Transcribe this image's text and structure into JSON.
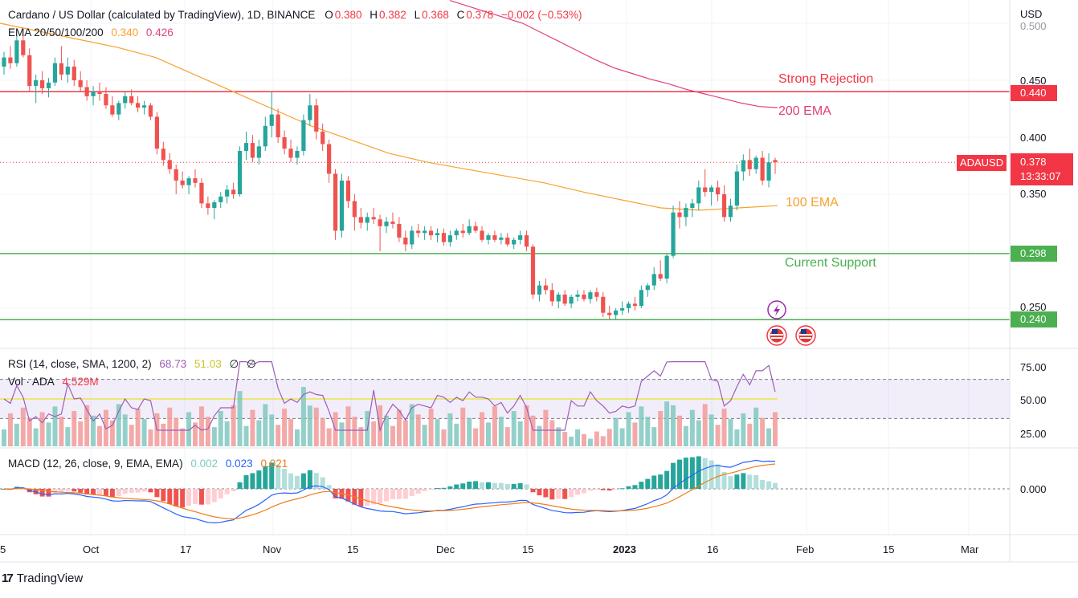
{
  "header": {
    "symbol_title": "Cardano / US Dollar (calculated by TradingView), 1D, BINANCE",
    "o_label": "O",
    "o_value": "0.380",
    "h_label": "H",
    "h_value": "0.382",
    "l_label": "L",
    "l_value": "0.368",
    "c_label": "C",
    "c_value": "0.378",
    "change": "−0.002 (−0.53%)",
    "ema_label": "EMA 20/50/100/200",
    "ema_v1": "0.340",
    "ema_v2": "0.426"
  },
  "rsi_header": {
    "label": "RSI (14, close, SMA, 1200, 2)",
    "v1": "68.73",
    "v2": "51.03",
    "v3": "∅",
    "v4": "∅"
  },
  "vol_header": {
    "label": "Vol · ADA",
    "value": "4.529M"
  },
  "macd_header": {
    "label": "MACD (12, 26, close, 9, EMA, EMA)",
    "v1": "0.002",
    "v2": "0.023",
    "v3": "0.021"
  },
  "annotations": {
    "strong_rejection": "Strong Rejection",
    "ema200": "200 EMA",
    "ema100": "100 EMA",
    "current_support": "Current Support"
  },
  "price_axis": {
    "unit": "USD",
    "ticks": [
      "0.500",
      "0.450",
      "0.400",
      "0.350",
      "0.250"
    ],
    "tag_440": "0.440",
    "tag_298": "0.298",
    "tag_240": "0.240",
    "last_price": "0.378",
    "countdown": "13:33:07",
    "symbol_tag": "ADAUSD"
  },
  "rsi_axis": {
    "ticks": [
      "75.00",
      "50.00",
      "25.00"
    ]
  },
  "macd_axis": {
    "ticks": [
      "0.000"
    ]
  },
  "time_axis": {
    "labels": [
      "5",
      "Oct",
      "17",
      "Nov",
      "15",
      "Dec",
      "15",
      "2023",
      "16",
      "Feb",
      "15",
      "Mar"
    ]
  },
  "branding": {
    "logo_text": "TradingView",
    "logo_mark": "17"
  },
  "chart_data": {
    "type": "candlestick",
    "symbol": "ADAUSD",
    "interval": "1D",
    "exchange": "BINANCE",
    "price_range": [
      0.235,
      0.51
    ],
    "horizontal_levels": [
      {
        "value": 0.44,
        "color": "#f23645",
        "label": "Strong Rejection"
      },
      {
        "value": 0.298,
        "color": "#4caf50",
        "label": "Current Support"
      },
      {
        "value": 0.24,
        "color": "#4caf50"
      }
    ],
    "candles": [
      [
        0.462,
        0.475,
        0.455,
        0.47
      ],
      [
        0.47,
        0.48,
        0.46,
        0.465
      ],
      [
        0.465,
        0.49,
        0.462,
        0.485
      ],
      [
        0.485,
        0.495,
        0.47,
        0.472
      ],
      [
        0.472,
        0.478,
        0.44,
        0.445
      ],
      [
        0.445,
        0.455,
        0.43,
        0.45
      ],
      [
        0.45,
        0.458,
        0.438,
        0.443
      ],
      [
        0.443,
        0.452,
        0.435,
        0.448
      ],
      [
        0.448,
        0.47,
        0.445,
        0.465
      ],
      [
        0.465,
        0.48,
        0.45,
        0.455
      ],
      [
        0.455,
        0.47,
        0.448,
        0.462
      ],
      [
        0.462,
        0.468,
        0.445,
        0.45
      ],
      [
        0.45,
        0.458,
        0.44,
        0.444
      ],
      [
        0.444,
        0.45,
        0.432,
        0.436
      ],
      [
        0.436,
        0.445,
        0.428,
        0.44
      ],
      [
        0.44,
        0.448,
        0.432,
        0.438
      ],
      [
        0.438,
        0.444,
        0.425,
        0.428
      ],
      [
        0.428,
        0.436,
        0.418,
        0.42
      ],
      [
        0.42,
        0.432,
        0.415,
        0.43
      ],
      [
        0.43,
        0.44,
        0.425,
        0.436
      ],
      [
        0.436,
        0.442,
        0.428,
        0.43
      ],
      [
        0.43,
        0.436,
        0.422,
        0.426
      ],
      [
        0.426,
        0.432,
        0.42,
        0.428
      ],
      [
        0.428,
        0.43,
        0.415,
        0.418
      ],
      [
        0.418,
        0.422,
        0.385,
        0.39
      ],
      [
        0.39,
        0.396,
        0.375,
        0.38
      ],
      [
        0.38,
        0.386,
        0.368,
        0.372
      ],
      [
        0.372,
        0.376,
        0.35,
        0.362
      ],
      [
        0.362,
        0.37,
        0.355,
        0.358
      ],
      [
        0.358,
        0.366,
        0.35,
        0.364
      ],
      [
        0.364,
        0.372,
        0.356,
        0.36
      ],
      [
        0.36,
        0.364,
        0.338,
        0.342
      ],
      [
        0.342,
        0.348,
        0.332,
        0.338
      ],
      [
        0.338,
        0.345,
        0.328,
        0.343
      ],
      [
        0.343,
        0.352,
        0.338,
        0.348
      ],
      [
        0.348,
        0.358,
        0.342,
        0.354
      ],
      [
        0.354,
        0.36,
        0.346,
        0.35
      ],
      [
        0.35,
        0.392,
        0.348,
        0.388
      ],
      [
        0.388,
        0.405,
        0.38,
        0.395
      ],
      [
        0.395,
        0.402,
        0.378,
        0.382
      ],
      [
        0.382,
        0.398,
        0.376,
        0.392
      ],
      [
        0.392,
        0.418,
        0.388,
        0.41
      ],
      [
        0.41,
        0.44,
        0.4,
        0.42
      ],
      [
        0.42,
        0.425,
        0.395,
        0.4
      ],
      [
        0.4,
        0.406,
        0.385,
        0.39
      ],
      [
        0.39,
        0.398,
        0.378,
        0.382
      ],
      [
        0.382,
        0.392,
        0.376,
        0.388
      ],
      [
        0.388,
        0.42,
        0.384,
        0.415
      ],
      [
        0.415,
        0.438,
        0.41,
        0.428
      ],
      [
        0.428,
        0.434,
        0.398,
        0.405
      ],
      [
        0.405,
        0.412,
        0.388,
        0.394
      ],
      [
        0.394,
        0.398,
        0.36,
        0.368
      ],
      [
        0.368,
        0.372,
        0.31,
        0.318
      ],
      [
        0.318,
        0.368,
        0.312,
        0.362
      ],
      [
        0.362,
        0.366,
        0.338,
        0.344
      ],
      [
        0.344,
        0.35,
        0.318,
        0.33
      ],
      [
        0.33,
        0.338,
        0.32,
        0.325
      ],
      [
        0.325,
        0.334,
        0.318,
        0.33
      ],
      [
        0.33,
        0.338,
        0.324,
        0.328
      ],
      [
        0.328,
        0.332,
        0.3,
        0.322
      ],
      [
        0.322,
        0.33,
        0.316,
        0.326
      ],
      [
        0.326,
        0.334,
        0.32,
        0.324
      ],
      [
        0.324,
        0.33,
        0.308,
        0.312
      ],
      [
        0.312,
        0.318,
        0.3,
        0.306
      ],
      [
        0.306,
        0.322,
        0.302,
        0.318
      ],
      [
        0.318,
        0.324,
        0.312,
        0.316
      ],
      [
        0.316,
        0.322,
        0.31,
        0.318
      ],
      [
        0.318,
        0.322,
        0.31,
        0.314
      ],
      [
        0.314,
        0.32,
        0.308,
        0.316
      ],
      [
        0.316,
        0.32,
        0.305,
        0.308
      ],
      [
        0.308,
        0.318,
        0.304,
        0.314
      ],
      [
        0.314,
        0.32,
        0.31,
        0.318
      ],
      [
        0.318,
        0.324,
        0.312,
        0.316
      ],
      [
        0.316,
        0.328,
        0.314,
        0.322
      ],
      [
        0.322,
        0.326,
        0.316,
        0.318
      ],
      [
        0.318,
        0.322,
        0.308,
        0.31
      ],
      [
        0.31,
        0.316,
        0.306,
        0.314
      ],
      [
        0.314,
        0.318,
        0.308,
        0.31
      ],
      [
        0.31,
        0.316,
        0.306,
        0.312
      ],
      [
        0.312,
        0.316,
        0.304,
        0.306
      ],
      [
        0.306,
        0.312,
        0.302,
        0.31
      ],
      [
        0.31,
        0.318,
        0.306,
        0.314
      ],
      [
        0.314,
        0.318,
        0.3,
        0.304
      ],
      [
        0.304,
        0.306,
        0.258,
        0.262
      ],
      [
        0.262,
        0.274,
        0.256,
        0.27
      ],
      [
        0.27,
        0.276,
        0.262,
        0.266
      ],
      [
        0.266,
        0.272,
        0.252,
        0.256
      ],
      [
        0.256,
        0.264,
        0.25,
        0.262
      ],
      [
        0.262,
        0.266,
        0.252,
        0.254
      ],
      [
        0.254,
        0.262,
        0.25,
        0.26
      ],
      [
        0.26,
        0.266,
        0.256,
        0.262
      ],
      [
        0.262,
        0.266,
        0.256,
        0.258
      ],
      [
        0.258,
        0.266,
        0.254,
        0.264
      ],
      [
        0.264,
        0.268,
        0.256,
        0.26
      ],
      [
        0.26,
        0.264,
        0.242,
        0.246
      ],
      [
        0.246,
        0.252,
        0.24,
        0.244
      ],
      [
        0.244,
        0.25,
        0.24,
        0.248
      ],
      [
        0.248,
        0.256,
        0.244,
        0.25
      ],
      [
        0.25,
        0.256,
        0.246,
        0.254
      ],
      [
        0.254,
        0.26,
        0.248,
        0.252
      ],
      [
        0.252,
        0.27,
        0.25,
        0.266
      ],
      [
        0.266,
        0.272,
        0.26,
        0.27
      ],
      [
        0.27,
        0.286,
        0.266,
        0.28
      ],
      [
        0.28,
        0.292,
        0.274,
        0.276
      ],
      [
        0.276,
        0.298,
        0.272,
        0.296
      ],
      [
        0.296,
        0.34,
        0.294,
        0.334
      ],
      [
        0.334,
        0.344,
        0.32,
        0.33
      ],
      [
        0.33,
        0.342,
        0.322,
        0.338
      ],
      [
        0.338,
        0.346,
        0.33,
        0.342
      ],
      [
        0.342,
        0.362,
        0.336,
        0.356
      ],
      [
        0.356,
        0.372,
        0.348,
        0.352
      ],
      [
        0.352,
        0.358,
        0.34,
        0.356
      ],
      [
        0.356,
        0.362,
        0.344,
        0.35
      ],
      [
        0.35,
        0.358,
        0.326,
        0.33
      ],
      [
        0.33,
        0.346,
        0.326,
        0.34
      ],
      [
        0.34,
        0.376,
        0.336,
        0.37
      ],
      [
        0.37,
        0.385,
        0.362,
        0.38
      ],
      [
        0.38,
        0.39,
        0.366,
        0.372
      ],
      [
        0.372,
        0.384,
        0.368,
        0.382
      ],
      [
        0.382,
        0.388,
        0.358,
        0.362
      ],
      [
        0.362,
        0.386,
        0.356,
        0.378
      ],
      [
        0.38,
        0.382,
        0.368,
        0.378
      ]
    ],
    "ema100": [
      0.5,
      0.493,
      0.486,
      0.479,
      0.47,
      0.455,
      0.44,
      0.425,
      0.41,
      0.398,
      0.386,
      0.378,
      0.372,
      0.366,
      0.36,
      0.352,
      0.345,
      0.338,
      0.336,
      0.338,
      0.34
    ],
    "ema200": [
      0.52,
      0.515,
      0.51,
      0.505,
      0.5,
      0.492,
      0.484,
      0.476,
      0.468,
      0.461,
      0.456,
      0.451,
      0.447,
      0.442,
      0.438,
      0.434,
      0.43,
      0.427,
      0.426
    ],
    "rsi": {
      "range": [
        0,
        100
      ],
      "levels": [
        70,
        50,
        30
      ],
      "ticks": [
        75,
        50,
        25
      ],
      "last": 68.73,
      "ma": 51.03
    },
    "volume": {
      "last": "4.529M"
    },
    "macd": {
      "macd_last": 0.023,
      "signal_last": 0.021,
      "hist_last": 0.002
    },
    "time_labels": [
      "5",
      "Oct",
      "17",
      "Nov",
      "15",
      "Dec",
      "15",
      "2023",
      "16",
      "Feb",
      "15",
      "Mar"
    ]
  }
}
